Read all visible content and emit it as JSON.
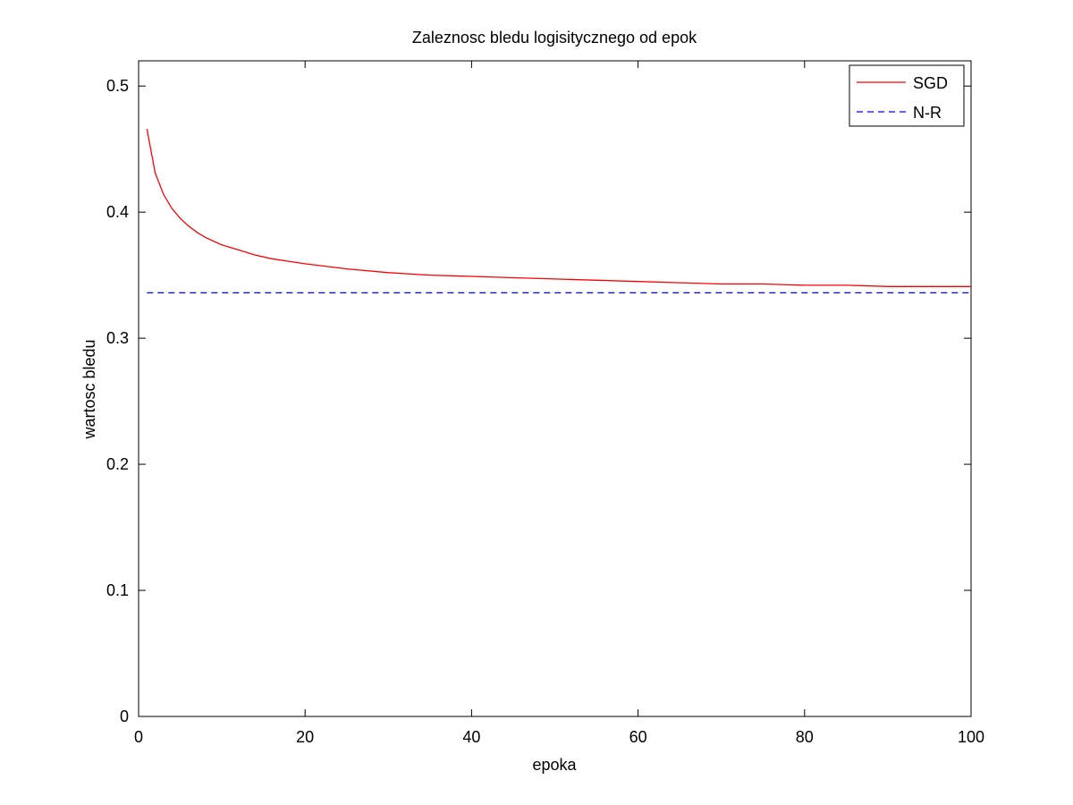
{
  "chart_data": {
    "type": "line",
    "title": "Zaleznosc bledu logisitycznego od epok",
    "xlabel": "epoka",
    "ylabel": "wartosc bledu",
    "xlim": [
      0,
      100
    ],
    "ylim": [
      0,
      0.52
    ],
    "xticks": [
      "0",
      "20",
      "40",
      "60",
      "80",
      "100"
    ],
    "yticks": [
      "0",
      "0.1",
      "0.2",
      "0.3",
      "0.4",
      "0.5"
    ],
    "legend_position": "top-right",
    "grid": false,
    "series": [
      {
        "name": "SGD",
        "style": "solid",
        "color": "#ff0000",
        "x": [
          1,
          2,
          3,
          4,
          5,
          6,
          7,
          8,
          9,
          10,
          12,
          14,
          16,
          18,
          20,
          25,
          30,
          35,
          40,
          45,
          50,
          55,
          60,
          65,
          70,
          75,
          80,
          85,
          90,
          95,
          100
        ],
        "y": [
          0.466,
          0.431,
          0.414,
          0.403,
          0.395,
          0.389,
          0.384,
          0.38,
          0.377,
          0.374,
          0.37,
          0.366,
          0.363,
          0.361,
          0.359,
          0.355,
          0.352,
          0.35,
          0.349,
          0.348,
          0.347,
          0.346,
          0.345,
          0.344,
          0.343,
          0.343,
          0.342,
          0.342,
          0.341,
          0.341,
          0.341
        ]
      },
      {
        "name": "N-R",
        "style": "dashed",
        "color": "#0000ff",
        "x": [
          1,
          100
        ],
        "y": [
          0.336,
          0.336
        ]
      }
    ]
  }
}
